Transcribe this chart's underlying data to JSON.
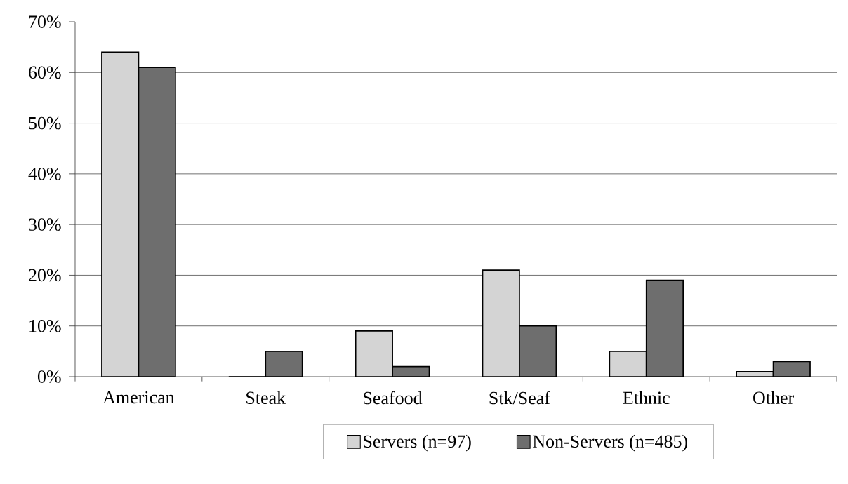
{
  "chart_data": {
    "type": "bar",
    "categories": [
      "American",
      "Steak",
      "Seafood",
      "Stk/Seaf",
      "Ethnic",
      "Other"
    ],
    "series": [
      {
        "name": "Servers (n=97)",
        "color": "#d4d4d4",
        "values": [
          64,
          0,
          9,
          21,
          5,
          1
        ]
      },
      {
        "name": "Non-Servers (n=485)",
        "color": "#6e6e6e",
        "values": [
          61,
          5,
          2,
          10,
          19,
          3
        ]
      }
    ],
    "ylim": [
      0,
      70
    ],
    "yticks": [
      {
        "value": 0,
        "label": "0%"
      },
      {
        "value": 10,
        "label": "10%"
      },
      {
        "value": 20,
        "label": "20%"
      },
      {
        "value": 30,
        "label": "30%"
      },
      {
        "value": 40,
        "label": "40%"
      },
      {
        "value": 50,
        "label": "50%"
      },
      {
        "value": 60,
        "label": "60%"
      },
      {
        "value": 70,
        "label": "70%"
      }
    ],
    "grid": "y",
    "legend": "bottom"
  }
}
